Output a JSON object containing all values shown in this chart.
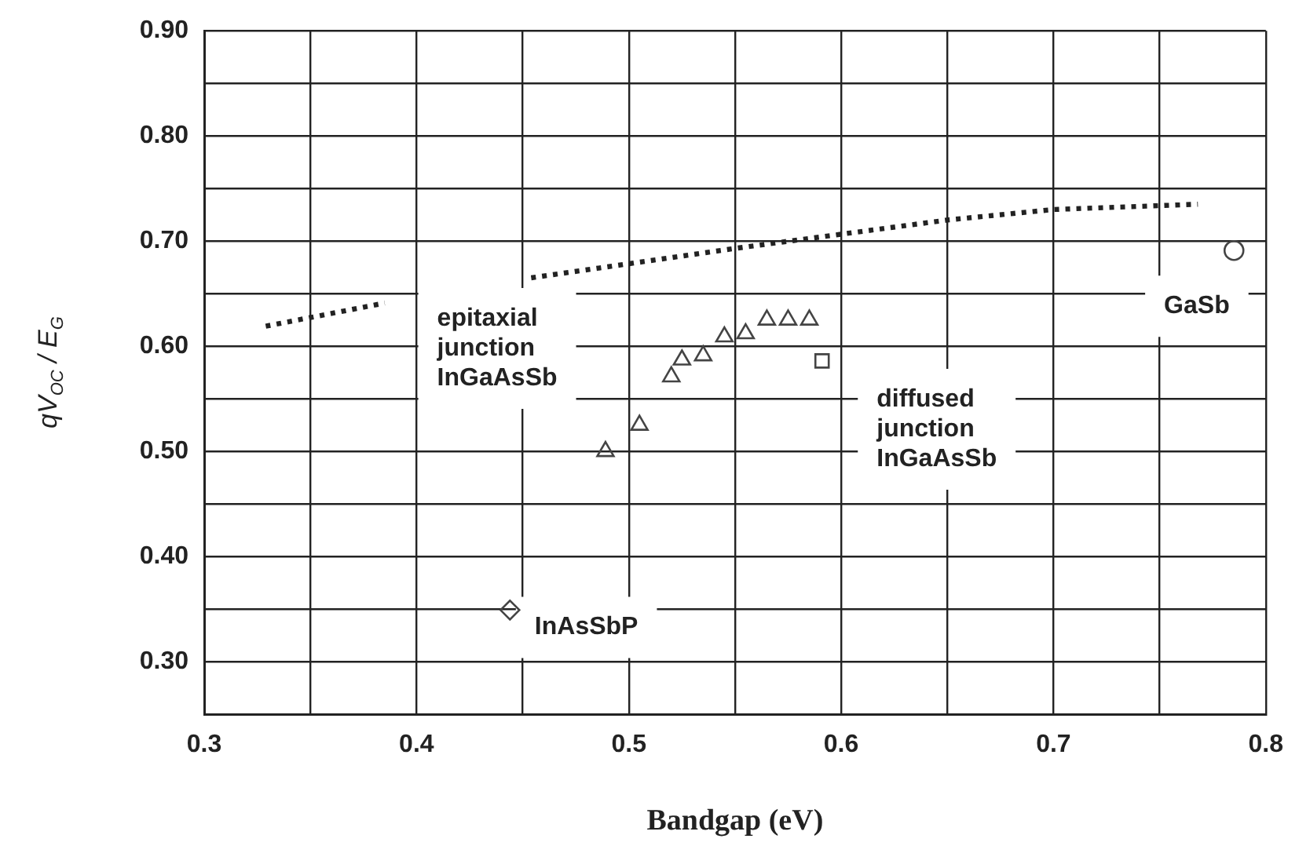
{
  "chart_data": {
    "type": "scatter",
    "xlabel": "Bandgap (eV)",
    "ylabel": "qV$_{OC}$ / E$_{G}$",
    "xlim": [
      0.3,
      0.8
    ],
    "ylim": [
      0.25,
      0.9
    ],
    "xticks": [
      0.3,
      {
        "value": 0.35,
        "label": null
      },
      0.4,
      {
        "value": 0.45,
        "label": null
      },
      0.5,
      {
        "value": 0.55,
        "label": null
      },
      0.6,
      {
        "value": 0.65,
        "label": null
      },
      0.7,
      {
        "value": 0.75,
        "label": null
      },
      0.8
    ],
    "yticks": [
      {
        "value": 0.3,
        "label": "0.30"
      },
      {
        "value": 0.35,
        "label": null
      },
      {
        "value": 0.4,
        "label": "0.40"
      },
      {
        "value": 0.45,
        "label": null
      },
      {
        "value": 0.5,
        "label": "0.50"
      },
      {
        "value": 0.55,
        "label": null
      },
      {
        "value": 0.6,
        "label": "0.60"
      },
      {
        "value": 0.65,
        "label": null
      },
      {
        "value": 0.7,
        "label": "0.70"
      },
      {
        "value": 0.75,
        "label": null
      },
      {
        "value": 0.8,
        "label": "0.80"
      },
      {
        "value": 0.85,
        "label": null
      },
      {
        "value": 0.9,
        "label": "0.90"
      }
    ],
    "grid": true,
    "legend": false,
    "series": [
      {
        "type": "line",
        "color": "#222222",
        "marker": "none",
        "line_style": "dotted",
        "x": [
          0.329,
          0.385,
          0.42,
          0.454,
          0.55,
          0.65,
          0.7,
          0.768
        ],
        "values": [
          0.619,
          0.641,
          null,
          0.665,
          0.693,
          0.72,
          0.73,
          0.735
        ]
      },
      {
        "color": "#444444",
        "marker": "triangle",
        "x": [
          0.489,
          0.505,
          0.52,
          0.525,
          0.535,
          0.545,
          0.555,
          0.565,
          0.575,
          0.585
        ],
        "values": [
          0.5,
          0.525,
          0.571,
          0.587,
          0.591,
          0.609,
          0.612,
          0.625,
          0.625,
          0.625
        ]
      },
      {
        "color": "#444444",
        "marker": "square",
        "x": [
          0.591
        ],
        "values": [
          0.586
        ]
      },
      {
        "color": "#444444",
        "marker": "circle",
        "x": [
          0.785
        ],
        "values": [
          0.691
        ]
      },
      {
        "color": "#444444",
        "marker": "diamond",
        "x": [
          0.444
        ],
        "values": [
          0.349
        ]
      }
    ],
    "annotations": [
      "epitaxial\njunction\nInGaAsSb",
      "diffused\njunction\nInGaAsSb",
      "InAsSbP",
      "GaSb"
    ]
  }
}
